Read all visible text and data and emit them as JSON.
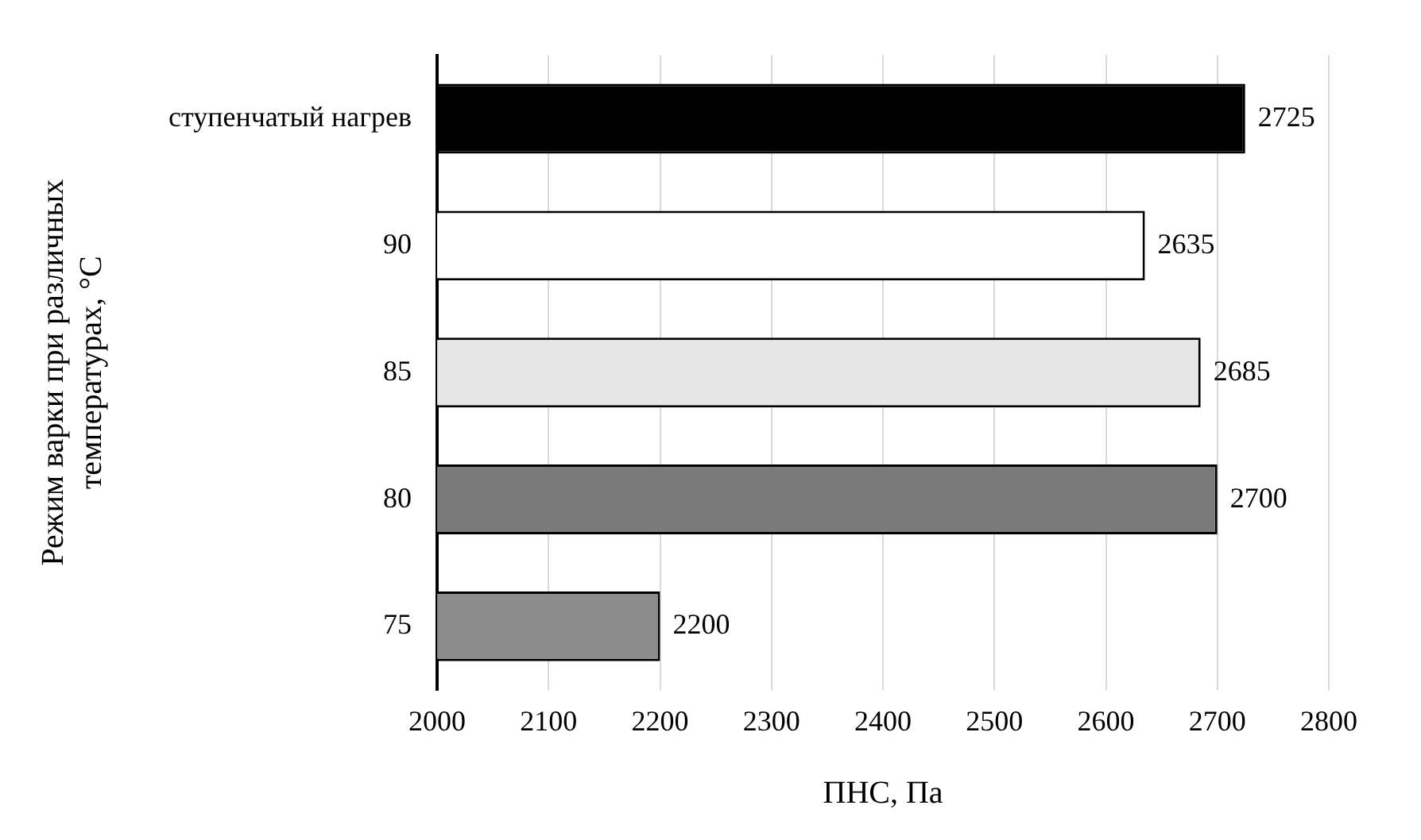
{
  "chart_data": {
    "type": "bar",
    "orientation": "horizontal",
    "xlabel": "ПНС, Па",
    "ylabel": "Режим варки при различных температурах, °С",
    "categories": [
      "ступенчатый нагрев",
      "90",
      "85",
      "80",
      "75"
    ],
    "values": [
      2725,
      2635,
      2685,
      2700,
      2200
    ],
    "colors": [
      "#000000",
      "#ffffff",
      "#e6e6e6",
      "#7a7a7a",
      "#8c8c8c"
    ],
    "xlim": [
      2000,
      2800
    ],
    "xticks": [
      2000,
      2100,
      2200,
      2300,
      2400,
      2500,
      2600,
      2700,
      2800
    ],
    "grid": "x",
    "data_labels": true,
    "legend": false
  }
}
